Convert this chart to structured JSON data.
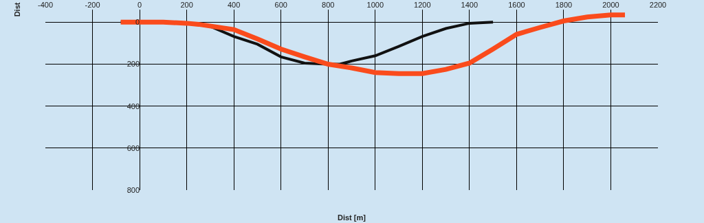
{
  "chart_data": {
    "type": "line",
    "xlabel": "Dist [m]",
    "ylabel": "Dist",
    "xlim": [
      -400,
      2200
    ],
    "xticks": [
      -400,
      -200,
      0,
      200,
      400,
      600,
      800,
      1000,
      1200,
      1400,
      1600,
      1800,
      2000,
      2200
    ],
    "ylim": [
      800,
      -60
    ],
    "yticks": [
      0,
      200,
      400,
      600,
      800
    ],
    "grid": true,
    "marker": "none",
    "line_style": "solid",
    "series": [
      {
        "color": "#111111",
        "x": [
          -80,
          100,
          200,
          300,
          400,
          500,
          600,
          700,
          800,
          850,
          900,
          1000,
          1100,
          1200,
          1300,
          1400,
          1500
        ],
        "values": [
          0,
          0,
          5,
          20,
          68,
          105,
          165,
          195,
          200,
          200,
          185,
          160,
          115,
          68,
          30,
          5,
          0
        ]
      },
      {
        "color": "#fa4b1c",
        "x": [
          -80,
          100,
          200,
          250,
          400,
          500,
          600,
          700,
          800,
          900,
          1000,
          1100,
          1200,
          1300,
          1400,
          1500,
          1600,
          1700,
          1800,
          1900,
          2000,
          2060
        ],
        "values": [
          0,
          0,
          5,
          10,
          35,
          80,
          128,
          165,
          200,
          218,
          240,
          245,
          245,
          225,
          195,
          128,
          58,
          25,
          -6,
          -25,
          -35,
          -35
        ]
      }
    ]
  }
}
